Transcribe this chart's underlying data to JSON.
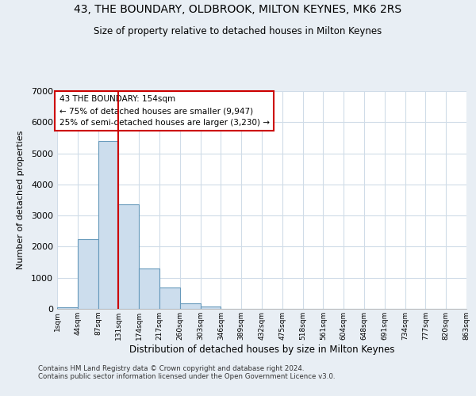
{
  "title": "43, THE BOUNDARY, OLDBROOK, MILTON KEYNES, MK6 2RS",
  "subtitle": "Size of property relative to detached houses in Milton Keynes",
  "xlabel": "Distribution of detached houses by size in Milton Keynes",
  "ylabel": "Number of detached properties",
  "bar_values": [
    50,
    2250,
    5400,
    3350,
    1300,
    700,
    170,
    80,
    0,
    0,
    0,
    0,
    0,
    0,
    0,
    0,
    0,
    0,
    0,
    0
  ],
  "bar_labels": [
    "1sqm",
    "44sqm",
    "87sqm",
    "131sqm",
    "174sqm",
    "217sqm",
    "260sqm",
    "303sqm",
    "346sqm",
    "389sqm",
    "432sqm",
    "475sqm",
    "518sqm",
    "561sqm",
    "604sqm",
    "648sqm",
    "691sqm",
    "734sqm",
    "777sqm",
    "820sqm",
    "863sqm"
  ],
  "ylim": [
    0,
    7000
  ],
  "yticks": [
    0,
    1000,
    2000,
    3000,
    4000,
    5000,
    6000,
    7000
  ],
  "bar_color": "#ccdded",
  "bar_edge_color": "#6699bb",
  "vline_x": 3,
  "vline_color": "#cc0000",
  "annotation_title": "43 THE BOUNDARY: 154sqm",
  "annotation_line1": "← 75% of detached houses are smaller (9,947)",
  "annotation_line2": "25% of semi-detached houses are larger (3,230) →",
  "annotation_box_color": "#cc0000",
  "footer_line1": "Contains HM Land Registry data © Crown copyright and database right 2024.",
  "footer_line2": "Contains public sector information licensed under the Open Government Licence v3.0.",
  "background_color": "#e8eef4",
  "plot_bg_color": "#ffffff",
  "grid_color": "#d0dce8"
}
